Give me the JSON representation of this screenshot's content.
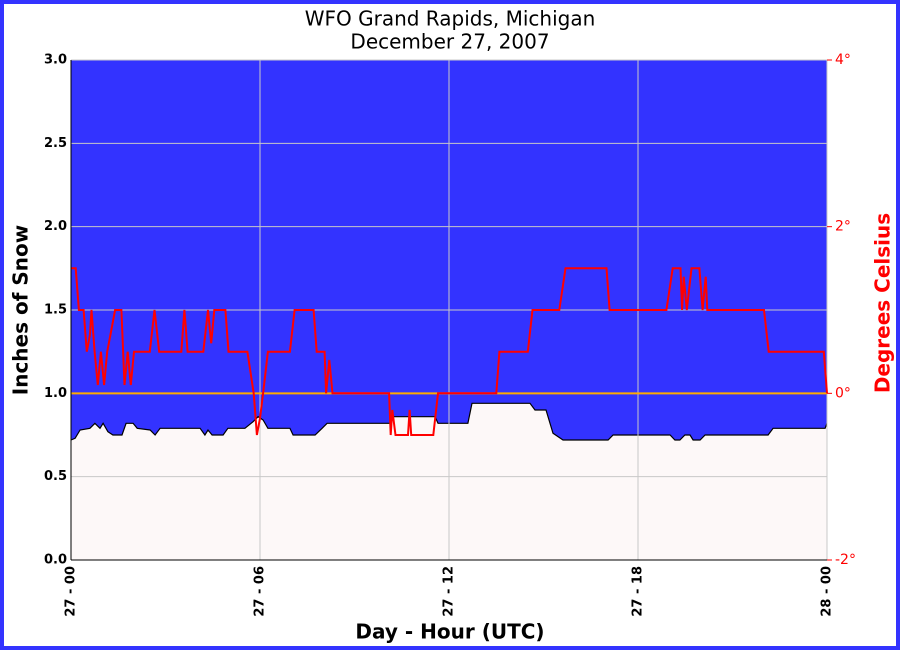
{
  "chart_data": {
    "type": "line",
    "title": "WFO Grand Rapids, Michigan",
    "subtitle": "December 27, 2007",
    "x_label": "Day - Hour (UTC)",
    "y_label": "Inches of Snow",
    "y2_label": "Degrees Celsius",
    "xlim": [
      0,
      24
    ],
    "xticks": [
      {
        "value": 0,
        "label": "27 - 00"
      },
      {
        "value": 6,
        "label": "27 - 06"
      },
      {
        "value": 12,
        "label": "27 - 12"
      },
      {
        "value": 18,
        "label": "27 - 18"
      },
      {
        "value": 24,
        "label": "28 - 00"
      }
    ],
    "ylim": [
      0,
      3
    ],
    "yticks": [
      {
        "value": 0,
        "label": "0.0"
      },
      {
        "value": 0.5,
        "label": "0.5"
      },
      {
        "value": 1,
        "label": "1.0"
      },
      {
        "value": 1.5,
        "label": "1.5"
      },
      {
        "value": 2,
        "label": "2.0"
      },
      {
        "value": 2.5,
        "label": "2.5"
      },
      {
        "value": 3,
        "label": "3.0"
      }
    ],
    "y2lim": [
      -2,
      4
    ],
    "y2ticks": [
      {
        "value": -2,
        "label": "-2°"
      },
      {
        "value": 0,
        "label": "0°"
      },
      {
        "value": 2,
        "label": "2°"
      },
      {
        "value": 4,
        "label": "4°"
      }
    ],
    "grid": true,
    "background": "#3333ff",
    "reference_line": {
      "value": 0,
      "axis": "y2",
      "color": "#ffaa00"
    },
    "series": [
      {
        "type": "area",
        "color": "#fdf8f8",
        "edge_color": "#000000",
        "axis": "y",
        "x": [
          0,
          0.13,
          0.29,
          0.6,
          0.76,
          0.92,
          1.02,
          1.17,
          1.33,
          1.62,
          1.75,
          1.97,
          2.1,
          2.51,
          2.67,
          2.83,
          4.1,
          4.25,
          4.35,
          4.48,
          4.83,
          4.98,
          5.52,
          5.78,
          5.94,
          6.1,
          6.25,
          6.95,
          7.05,
          7.75,
          7.97,
          8.13,
          10.13,
          10.19,
          11.56,
          11.65,
          12.6,
          12.73,
          14.57,
          14.73,
          15.08,
          15.3,
          15.62,
          17.05,
          17.21,
          19.02,
          19.17,
          19.33,
          19.49,
          19.65,
          19.75,
          19.97,
          20.13,
          22.13,
          22.29,
          23.94,
          24
        ],
        "values": [
          0.72,
          0.73,
          0.78,
          0.79,
          0.82,
          0.79,
          0.82,
          0.77,
          0.75,
          0.75,
          0.82,
          0.82,
          0.79,
          0.78,
          0.75,
          0.79,
          0.79,
          0.75,
          0.78,
          0.75,
          0.75,
          0.79,
          0.79,
          0.83,
          0.86,
          0.84,
          0.79,
          0.79,
          0.75,
          0.75,
          0.79,
          0.82,
          0.82,
          0.86,
          0.86,
          0.82,
          0.82,
          0.94,
          0.94,
          0.9,
          0.9,
          0.76,
          0.72,
          0.72,
          0.75,
          0.75,
          0.72,
          0.72,
          0.75,
          0.75,
          0.72,
          0.72,
          0.75,
          0.75,
          0.79,
          0.79,
          0.82
        ]
      },
      {
        "type": "line",
        "color": "#ff0000",
        "axis": "y2",
        "x": [
          0,
          0.15,
          0.25,
          0.4,
          0.5,
          0.6,
          0.65,
          0.75,
          0.85,
          0.95,
          1.05,
          1.15,
          1.25,
          1.4,
          1.6,
          1.7,
          1.8,
          1.9,
          2.0,
          2.5,
          2.65,
          2.8,
          3.5,
          3.6,
          3.7,
          4.2,
          4.35,
          4.45,
          4.55,
          4.9,
          5.0,
          5.6,
          5.8,
          5.9,
          6.0,
          6.1,
          6.25,
          6.95,
          7.1,
          7.7,
          7.8,
          8.05,
          8.1,
          8.2,
          8.3,
          10.1,
          10.15,
          10.2,
          10.3,
          10.7,
          10.75,
          10.8,
          11.5,
          11.65,
          13.5,
          13.6,
          14.5,
          14.65,
          15.5,
          15.7,
          17.0,
          17.1,
          18.9,
          19.1,
          19.35,
          19.4,
          19.45,
          19.55,
          19.7,
          19.95,
          20.05,
          20.15,
          20.2,
          22.0,
          22.15,
          23.9,
          24
        ],
        "values": [
          1.5,
          1.5,
          1.0,
          1.0,
          0.5,
          0.7,
          1.0,
          0.5,
          0.1,
          0.5,
          0.1,
          0.5,
          0.7,
          1.0,
          1.0,
          0.1,
          0.5,
          0.1,
          0.5,
          0.5,
          1.0,
          0.5,
          0.5,
          1.0,
          0.5,
          0.5,
          1.0,
          0.6,
          1.0,
          1.0,
          0.5,
          0.5,
          0,
          -0.5,
          -0.3,
          0,
          0.5,
          0.5,
          1.0,
          1.0,
          0.5,
          0.5,
          0,
          0.4,
          0,
          0,
          -0.5,
          -0.2,
          -0.5,
          -0.5,
          -0.2,
          -0.5,
          -0.5,
          0,
          0,
          0.5,
          0.5,
          1.0,
          1.0,
          1.5,
          1.5,
          1.0,
          1.0,
          1.5,
          1.5,
          1.0,
          1.4,
          1.0,
          1.5,
          1.5,
          1.0,
          1.4,
          1.0,
          1.0,
          0.5,
          0.5,
          0
        ]
      }
    ]
  }
}
